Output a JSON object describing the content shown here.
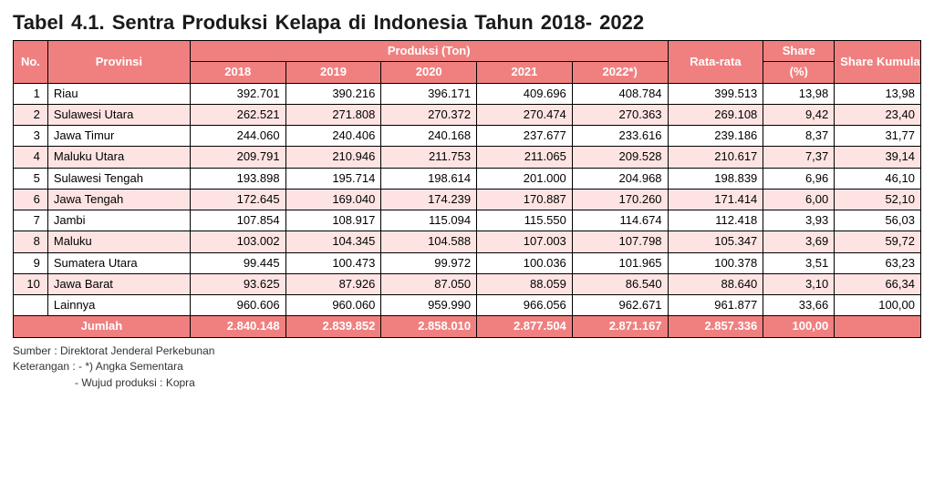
{
  "title": "Tabel 4.1.  Sentra Produksi Kelapa  di Indonesia Tahun 2018- 2022",
  "colors": {
    "header_bg": "#f08080",
    "header_text": "#ffffff",
    "zebra_bg": "#fde4e2",
    "border": "#000000",
    "body_bg": "#ffffff"
  },
  "columns": {
    "no": "No.",
    "provinsi": "Provinsi",
    "produksi_group": "Produksi (Ton)",
    "years": [
      "2018",
      "2019",
      "2020",
      "2021",
      "2022*)"
    ],
    "rata": "Rata-rata",
    "share": "Share",
    "share_pct": "(%)",
    "kumulatif": "Share Kumulatif (%)"
  },
  "rows": [
    {
      "no": "1",
      "prov": "Riau",
      "y": [
        "392.701",
        "390.216",
        "396.171",
        "409.696",
        "408.784"
      ],
      "rata": "399.513",
      "share": "13,98",
      "kum": "13,98",
      "zebra": false
    },
    {
      "no": "2",
      "prov": "Sulawesi Utara",
      "y": [
        "262.521",
        "271.808",
        "270.372",
        "270.474",
        "270.363"
      ],
      "rata": "269.108",
      "share": "9,42",
      "kum": "23,40",
      "zebra": true
    },
    {
      "no": "3",
      "prov": "Jawa Timur",
      "y": [
        "244.060",
        "240.406",
        "240.168",
        "237.677",
        "233.616"
      ],
      "rata": "239.186",
      "share": "8,37",
      "kum": "31,77",
      "zebra": false
    },
    {
      "no": "4",
      "prov": "Maluku Utara",
      "y": [
        "209.791",
        "210.946",
        "211.753",
        "211.065",
        "209.528"
      ],
      "rata": "210.617",
      "share": "7,37",
      "kum": "39,14",
      "zebra": true
    },
    {
      "no": "5",
      "prov": "Sulawesi Tengah",
      "y": [
        "193.898",
        "195.714",
        "198.614",
        "201.000",
        "204.968"
      ],
      "rata": "198.839",
      "share": "6,96",
      "kum": "46,10",
      "zebra": false
    },
    {
      "no": "6",
      "prov": "Jawa Tengah",
      "y": [
        "172.645",
        "169.040",
        "174.239",
        "170.887",
        "170.260"
      ],
      "rata": "171.414",
      "share": "6,00",
      "kum": "52,10",
      "zebra": true
    },
    {
      "no": "7",
      "prov": "Jambi",
      "y": [
        "107.854",
        "108.917",
        "115.094",
        "115.550",
        "114.674"
      ],
      "rata": "112.418",
      "share": "3,93",
      "kum": "56,03",
      "zebra": false
    },
    {
      "no": "8",
      "prov": "Maluku",
      "y": [
        "103.002",
        "104.345",
        "104.588",
        "107.003",
        "107.798"
      ],
      "rata": "105.347",
      "share": "3,69",
      "kum": "59,72",
      "zebra": true
    },
    {
      "no": "9",
      "prov": "Sumatera Utara",
      "y": [
        "99.445",
        "100.473",
        "99.972",
        "100.036",
        "101.965"
      ],
      "rata": "100.378",
      "share": "3,51",
      "kum": "63,23",
      "zebra": false
    },
    {
      "no": "10",
      "prov": "Jawa Barat",
      "y": [
        "93.625",
        "87.926",
        "87.050",
        "88.059",
        "86.540"
      ],
      "rata": "88.640",
      "share": "3,10",
      "kum": "66,34",
      "zebra": true
    },
    {
      "no": "",
      "prov": "Lainnya",
      "y": [
        "960.606",
        "960.060",
        "959.990",
        "966.056",
        "962.671"
      ],
      "rata": "961.877",
      "share": "33,66",
      "kum": "100,00",
      "zebra": false
    }
  ],
  "total": {
    "label": "Jumlah",
    "y": [
      "2.840.148",
      "2.839.852",
      "2.858.010",
      "2.877.504",
      "2.871.167"
    ],
    "rata": "2.857.336",
    "share": "100,00",
    "kum": ""
  },
  "notes": [
    "Sumber :  Direktorat Jenderal Perkebunan",
    "Keterangan : - *) Angka Sementara",
    "-  Wujud produksi : Kopra"
  ]
}
